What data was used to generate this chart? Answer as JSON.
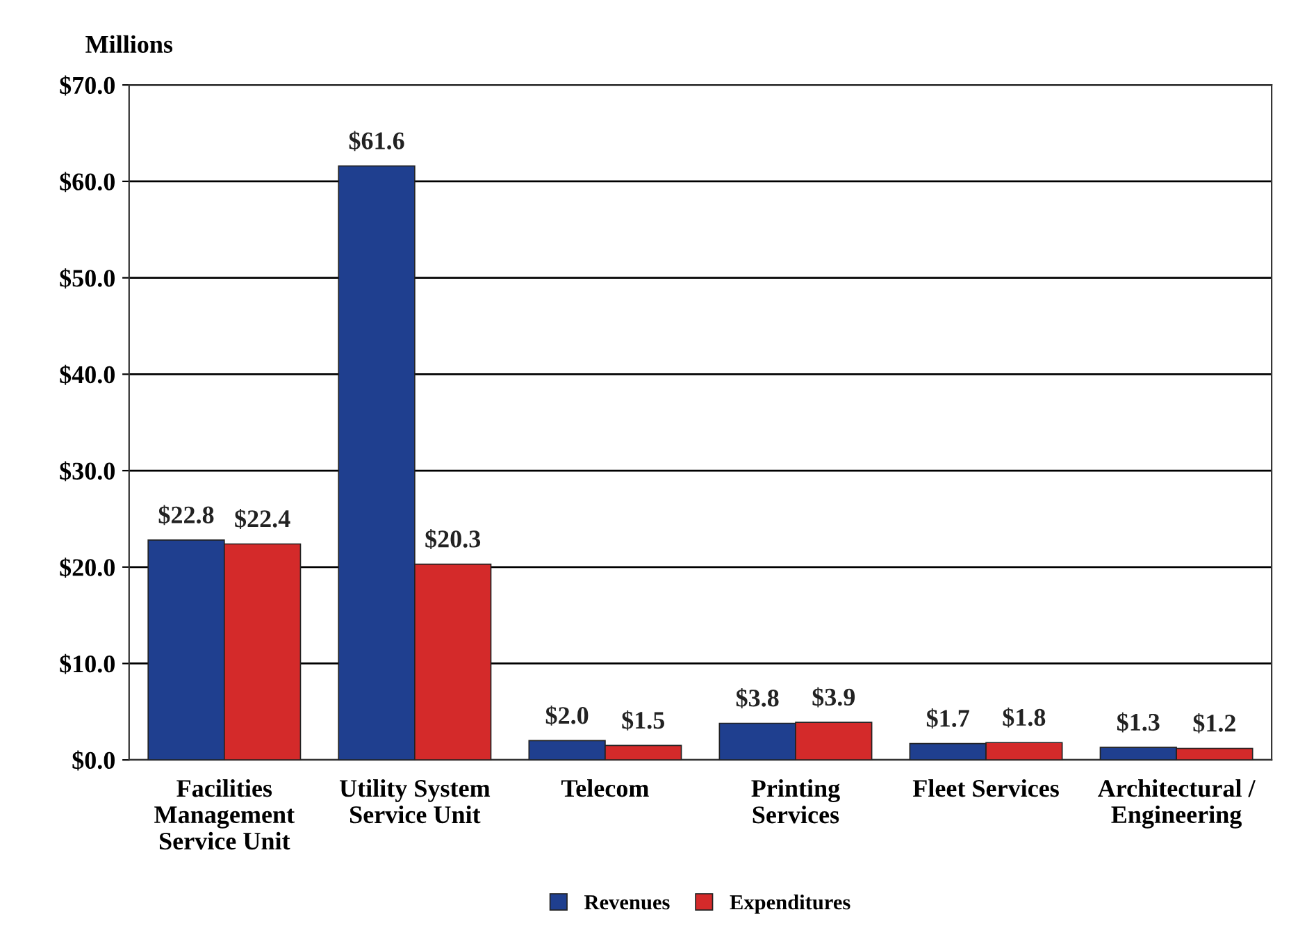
{
  "chart_data": {
    "type": "bar",
    "ylabel": "Millions",
    "categories": [
      "Facilities\nManagement\nService Unit",
      "Utility System\nService Unit",
      "Telecom",
      "Printing\nServices",
      "Fleet Services",
      "Architectural /\nEngineering"
    ],
    "series": [
      {
        "name": "Revenues",
        "color": "#1f3f8f",
        "values": [
          22.8,
          61.6,
          2.0,
          3.8,
          1.7,
          1.3
        ],
        "value_labels": [
          "$22.8",
          "$61.6",
          "$2.0",
          "$3.8",
          "$1.7",
          "$1.3"
        ]
      },
      {
        "name": "Expenditures",
        "color": "#d42a2a",
        "values": [
          22.4,
          20.3,
          1.5,
          3.9,
          1.8,
          1.2
        ],
        "value_labels": [
          "$22.4",
          "$20.3",
          "$1.5",
          "$3.9",
          "$1.8",
          "$1.2"
        ]
      }
    ],
    "ylim": [
      0,
      70
    ],
    "yticks": [
      {
        "value": 0,
        "label": "$0.0"
      },
      {
        "value": 10,
        "label": "$10.0"
      },
      {
        "value": 20,
        "label": "$20.0"
      },
      {
        "value": 30,
        "label": "$30.0"
      },
      {
        "value": 40,
        "label": "$40.0"
      },
      {
        "value": 50,
        "label": "$50.0"
      },
      {
        "value": 60,
        "label": "$60.0"
      },
      {
        "value": 70,
        "label": "$70.0"
      }
    ],
    "grid": "y",
    "legend": "bottom"
  }
}
